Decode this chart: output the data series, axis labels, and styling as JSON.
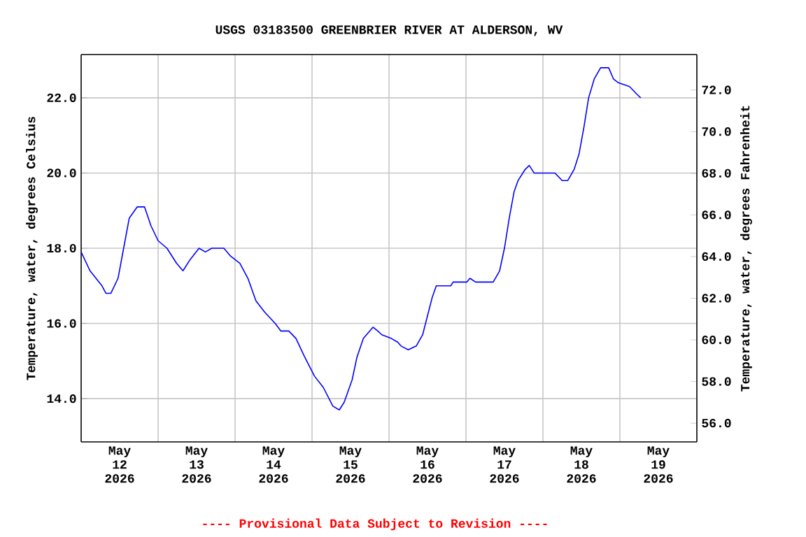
{
  "chart_data": {
    "type": "line",
    "title": "USGS 03183500 GREENBRIER RIVER AT ALDERSON, WV",
    "ylabel": "Temperature, water, degrees Celsius",
    "y2label": "Temperature, water, degrees Fahrenheit",
    "annotations": [
      "---- Provisional Data Subject to Revision ----"
    ],
    "xlim": [
      "2026-05-12T00:00",
      "2026-05-20T00:00"
    ],
    "xticks": [
      {
        "value": "2026-05-12T12:00",
        "label": "May 12 2026"
      },
      {
        "value": "2026-05-13T12:00",
        "label": "May 13 2026"
      },
      {
        "value": "2026-05-14T12:00",
        "label": "May 14 2026"
      },
      {
        "value": "2026-05-15T12:00",
        "label": "May 15 2026"
      },
      {
        "value": "2026-05-16T12:00",
        "label": "May 16 2026"
      },
      {
        "value": "2026-05-17T12:00",
        "label": "May 17 2026"
      },
      {
        "value": "2026-05-18T12:00",
        "label": "May 18 2026"
      },
      {
        "value": "2026-05-19T12:00",
        "label": "May 19 2026"
      },
      {
        "value": "2026-05-13T00:00",
        "label": null
      },
      {
        "value": "2026-05-14T00:00",
        "label": null
      },
      {
        "value": "2026-05-15T00:00",
        "label": null
      },
      {
        "value": "2026-05-16T00:00",
        "label": null
      },
      {
        "value": "2026-05-17T00:00",
        "label": null
      },
      {
        "value": "2026-05-18T00:00",
        "label": null
      },
      {
        "value": "2026-05-19T00:00",
        "label": null
      }
    ],
    "ylim": [
      12.85,
      23.15
    ],
    "yticks": [
      {
        "value": 14,
        "label": "14.0"
      },
      {
        "value": 16,
        "label": "16.0"
      },
      {
        "value": 18,
        "label": "18.0"
      },
      {
        "value": 20,
        "label": "20.0"
      },
      {
        "value": 22,
        "label": "22.0"
      }
    ],
    "y2lim": [
      55.1,
      73.7
    ],
    "y2ticks": [
      {
        "value": 56,
        "label": "56.0"
      },
      {
        "value": 58,
        "label": "58.0"
      },
      {
        "value": 60,
        "label": "60.0"
      },
      {
        "value": 62,
        "label": "62.0"
      },
      {
        "value": 64,
        "label": "64.0"
      },
      {
        "value": 66,
        "label": "66.0"
      },
      {
        "value": 68,
        "label": "68.0"
      },
      {
        "value": 70,
        "label": "70.0"
      },
      {
        "value": 72,
        "label": "72.0"
      }
    ],
    "grid": true,
    "series": [
      {
        "color": "#0000ff",
        "x": [
          "2026-05-12T00:00",
          "2026-05-12T02:45",
          "2026-05-12T06:30",
          "2026-05-12T07:45",
          "2026-05-12T09:15",
          "2026-05-12T11:30",
          "2026-05-12T13:15",
          "2026-05-12T15:00",
          "2026-05-12T17:30",
          "2026-05-12T19:45",
          "2026-05-12T21:45",
          "2026-05-13T00:00",
          "2026-05-13T02:45",
          "2026-05-13T05:45",
          "2026-05-13T07:45",
          "2026-05-13T10:00",
          "2026-05-13T12:45",
          "2026-05-13T14:45",
          "2026-05-13T16:45",
          "2026-05-13T20:30",
          "2026-05-13T22:30",
          "2026-05-14T01:30",
          "2026-05-14T04:00",
          "2026-05-14T06:30",
          "2026-05-14T09:15",
          "2026-05-14T12:30",
          "2026-05-14T14:15",
          "2026-05-14T16:45",
          "2026-05-14T19:00",
          "2026-05-14T21:45",
          "2026-05-15T00:45",
          "2026-05-15T03:30",
          "2026-05-15T06:30",
          "2026-05-15T08:30",
          "2026-05-15T10:00",
          "2026-05-15T12:30",
          "2026-05-15T14:00",
          "2026-05-15T16:00",
          "2026-05-15T19:00",
          "2026-05-15T20:30",
          "2026-05-15T21:45",
          "2026-05-16T00:45",
          "2026-05-16T02:45",
          "2026-05-16T03:45",
          "2026-05-16T06:00",
          "2026-05-16T08:30",
          "2026-05-16T10:30",
          "2026-05-16T12:00",
          "2026-05-16T13:30",
          "2026-05-16T14:45",
          "2026-05-16T19:15",
          "2026-05-16T20:00",
          "2026-05-17T00:15",
          "2026-05-17T01:15",
          "2026-05-17T03:00",
          "2026-05-17T08:30",
          "2026-05-17T10:30",
          "2026-05-17T12:00",
          "2026-05-17T13:30",
          "2026-05-17T15:00",
          "2026-05-17T16:15",
          "2026-05-17T18:30",
          "2026-05-17T19:45",
          "2026-05-17T21:15",
          "2026-05-18T03:45",
          "2026-05-18T06:00",
          "2026-05-18T07:45",
          "2026-05-18T09:45",
          "2026-05-18T11:15",
          "2026-05-18T12:45",
          "2026-05-18T14:15",
          "2026-05-18T16:00",
          "2026-05-18T18:00",
          "2026-05-18T20:30",
          "2026-05-18T22:00",
          "2026-05-18T23:30",
          "2026-05-19T03:00",
          "2026-05-19T05:15",
          "2026-05-19T06:30"
        ],
        "values": [
          17.9,
          17.4,
          17.0,
          16.8,
          16.8,
          17.2,
          18.0,
          18.8,
          19.1,
          19.1,
          18.6,
          18.2,
          18.0,
          17.6,
          17.4,
          17.7,
          18.0,
          17.9,
          18.0,
          18.0,
          17.8,
          17.6,
          17.2,
          16.6,
          16.3,
          16.0,
          15.8,
          15.8,
          15.6,
          15.1,
          14.6,
          14.3,
          13.8,
          13.7,
          13.9,
          14.5,
          15.1,
          15.6,
          15.9,
          15.8,
          15.7,
          15.6,
          15.5,
          15.4,
          15.3,
          15.4,
          15.7,
          16.2,
          16.7,
          17.0,
          17.0,
          17.1,
          17.1,
          17.2,
          17.1,
          17.1,
          17.4,
          18.0,
          18.8,
          19.5,
          19.8,
          20.1,
          20.2,
          20.0,
          20.0,
          19.8,
          19.8,
          20.1,
          20.5,
          21.2,
          22.0,
          22.5,
          22.8,
          22.8,
          22.5,
          22.4,
          22.3,
          22.1,
          22.0
        ]
      }
    ]
  }
}
